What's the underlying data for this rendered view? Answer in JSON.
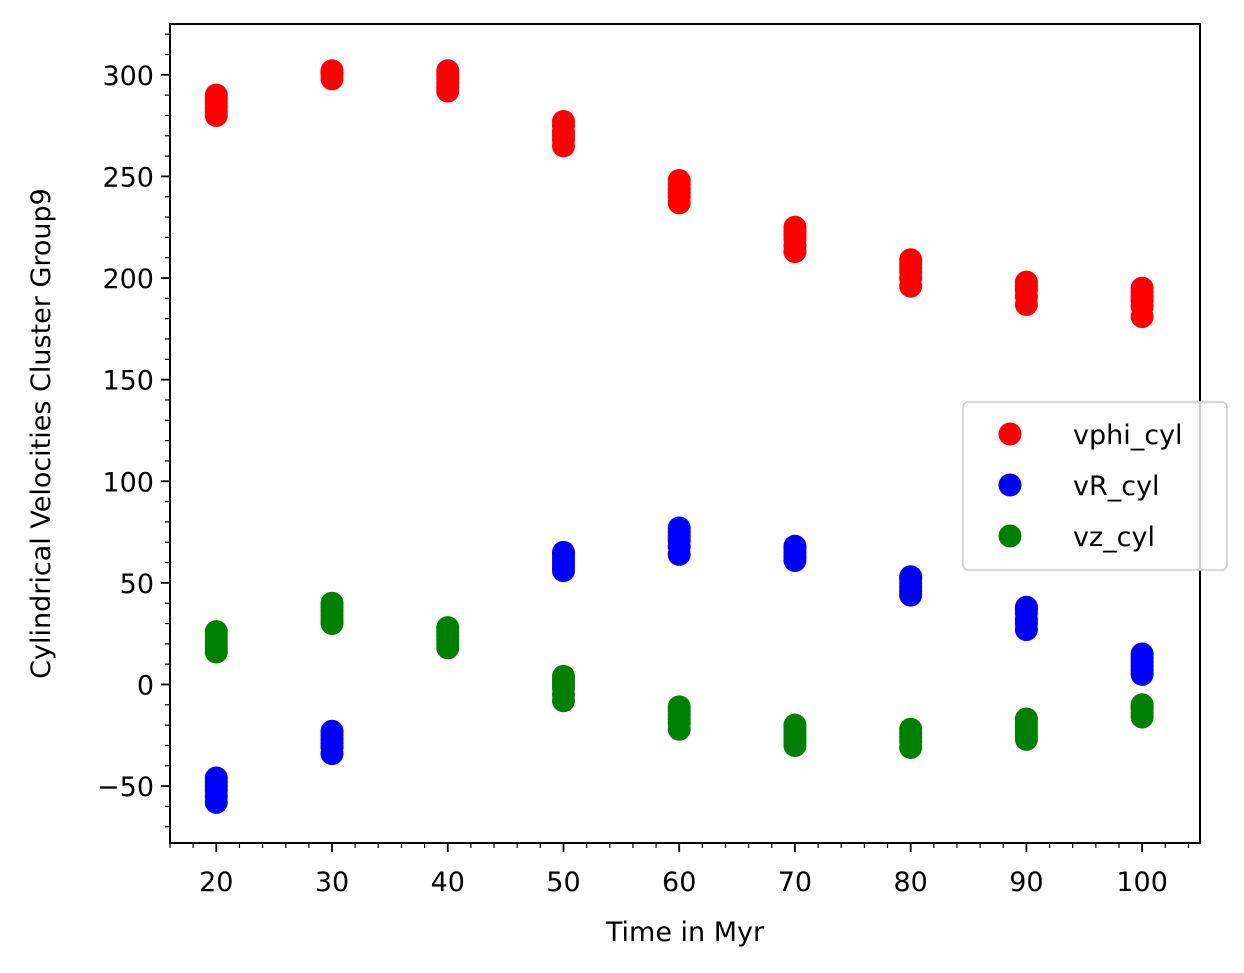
{
  "chart_data": {
    "type": "scatter",
    "xlabel": "Time in Myr",
    "ylabel": "Cylindrical Velocities Cluster Group9",
    "xlim": [
      16,
      105
    ],
    "ylim": [
      -78,
      325
    ],
    "xticks": [
      20,
      30,
      40,
      50,
      60,
      70,
      80,
      90,
      100
    ],
    "xtick_labels": [
      "20",
      "30",
      "40",
      "50",
      "60",
      "70",
      "80",
      "90",
      "100"
    ],
    "yticks": [
      -50,
      0,
      50,
      100,
      150,
      200,
      250,
      300
    ],
    "ytick_labels": [
      "−50",
      "0",
      "50",
      "100",
      "150",
      "200",
      "250",
      "300"
    ],
    "grid": false,
    "legend_position": "center-right",
    "series": [
      {
        "name": "vphi_cyl",
        "color": "#ff0000",
        "x": [
          20,
          20,
          20,
          20,
          20,
          20,
          30,
          30,
          30,
          30,
          40,
          40,
          40,
          40,
          40,
          40,
          50,
          50,
          50,
          50,
          50,
          50,
          60,
          60,
          60,
          60,
          60,
          60,
          70,
          70,
          70,
          70,
          70,
          70,
          80,
          80,
          80,
          80,
          80,
          80,
          90,
          90,
          90,
          90,
          90,
          100,
          100,
          100,
          100,
          100,
          100
        ],
        "y": [
          280,
          282,
          284,
          286,
          288,
          290,
          298,
          300,
          301,
          302,
          292,
          294,
          296,
          298,
          300,
          302,
          265,
          268,
          270,
          272,
          275,
          277,
          237,
          240,
          242,
          244,
          246,
          248,
          213,
          216,
          219,
          221,
          223,
          225,
          196,
          200,
          203,
          205,
          207,
          209,
          187,
          191,
          194,
          196,
          198,
          181,
          186,
          189,
          191,
          193,
          195
        ]
      },
      {
        "name": "vR_cyl",
        "color": "#0000ff",
        "x": [
          20,
          20,
          20,
          20,
          20,
          20,
          30,
          30,
          30,
          30,
          30,
          30,
          50,
          50,
          50,
          50,
          50,
          50,
          60,
          60,
          60,
          60,
          60,
          60,
          70,
          70,
          70,
          70,
          70,
          80,
          80,
          80,
          80,
          80,
          80,
          90,
          90,
          90,
          90,
          90,
          90,
          100,
          100,
          100,
          100,
          100,
          100
        ],
        "y": [
          -58,
          -55,
          -52,
          -50,
          -48,
          -46,
          -34,
          -31,
          -29,
          -27,
          -25,
          -23,
          56,
          58,
          60,
          62,
          64,
          65,
          64,
          68,
          71,
          73,
          75,
          77,
          61,
          63,
          65,
          67,
          68,
          44,
          46,
          48,
          50,
          52,
          53,
          27,
          30,
          32,
          35,
          37,
          38,
          5,
          7,
          9,
          11,
          13,
          15
        ]
      },
      {
        "name": "vz_cyl",
        "color": "#008000",
        "x": [
          20,
          20,
          20,
          20,
          20,
          20,
          30,
          30,
          30,
          30,
          30,
          30,
          40,
          40,
          40,
          40,
          40,
          40,
          50,
          50,
          50,
          50,
          50,
          50,
          60,
          60,
          60,
          60,
          60,
          60,
          70,
          70,
          70,
          70,
          70,
          70,
          80,
          80,
          80,
          80,
          80,
          90,
          90,
          90,
          90,
          90,
          90,
          100,
          100,
          100,
          100,
          100
        ],
        "y": [
          16,
          18,
          20,
          22,
          24,
          26,
          30,
          32,
          34,
          36,
          38,
          40,
          18,
          20,
          22,
          24,
          26,
          28,
          -8,
          -5,
          -2,
          0,
          2,
          4,
          -22,
          -19,
          -17,
          -15,
          -13,
          -11,
          -30,
          -28,
          -26,
          -24,
          -22,
          -20,
          -31,
          -28,
          -26,
          -24,
          -22,
          -27,
          -25,
          -23,
          -21,
          -19,
          -17,
          -16,
          -14,
          -12,
          -11,
          -10
        ]
      }
    ]
  }
}
